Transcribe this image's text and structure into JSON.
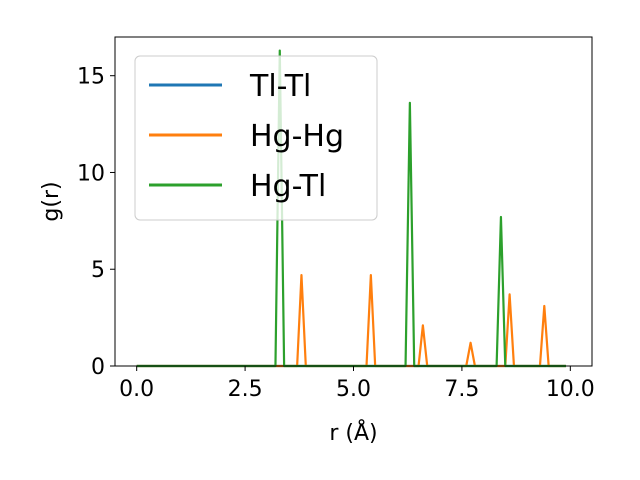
{
  "chart_data": {
    "type": "line",
    "xlabel": "r (Å)",
    "ylabel": "g(r)",
    "xlim": [
      -0.5,
      10.5
    ],
    "ylim": [
      0,
      17
    ],
    "xticks": [
      0.0,
      2.5,
      5.0,
      7.5,
      10.0
    ],
    "xtick_labels": [
      "0.0",
      "2.5",
      "5.0",
      "7.5",
      "10.0"
    ],
    "yticks": [
      0,
      5,
      10,
      15
    ],
    "ytick_labels": [
      "0",
      "5",
      "10",
      "15"
    ],
    "grid": false,
    "legend_position": "upper-left",
    "series": [
      {
        "name": "Tl-Tl",
        "color": "#1f77b4",
        "x": [
          0.0,
          9.9
        ],
        "y": [
          0,
          0
        ]
      },
      {
        "name": "Hg-Hg",
        "color": "#ff7f0e",
        "x": [
          0.0,
          3.7,
          3.8,
          3.9,
          5.3,
          5.4,
          5.5,
          6.5,
          6.6,
          6.7,
          7.6,
          7.7,
          7.8,
          8.5,
          8.6,
          8.7,
          9.3,
          9.4,
          9.5,
          9.9
        ],
        "y": [
          0,
          0,
          4.7,
          0,
          0,
          4.7,
          0,
          0,
          2.1,
          0,
          0,
          1.2,
          0,
          0,
          3.7,
          0,
          0,
          3.1,
          0,
          0
        ]
      },
      {
        "name": "Hg-Tl",
        "color": "#2ca02c",
        "x": [
          0.0,
          3.2,
          3.3,
          3.4,
          6.2,
          6.3,
          6.4,
          8.3,
          8.4,
          8.5,
          9.9
        ],
        "y": [
          0,
          0,
          16.3,
          0,
          0,
          13.6,
          0,
          0,
          7.7,
          0,
          0
        ]
      }
    ]
  }
}
